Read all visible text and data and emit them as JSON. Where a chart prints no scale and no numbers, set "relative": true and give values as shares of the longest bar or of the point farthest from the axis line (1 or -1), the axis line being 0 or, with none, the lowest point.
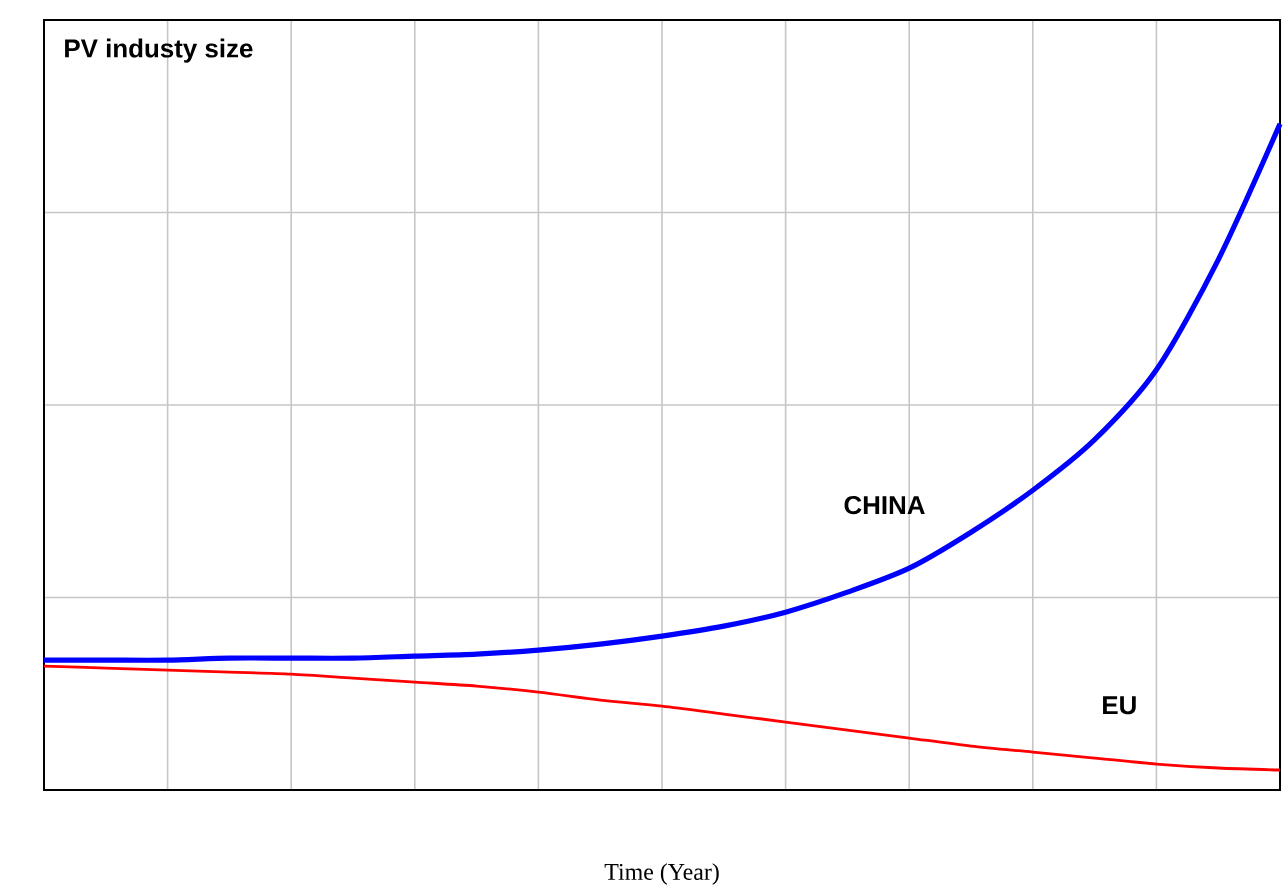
{
  "chart_data": {
    "type": "line",
    "title": "PV industy size",
    "xlabel": "Time (Year)",
    "relative": true,
    "grid": true,
    "tick_labels": false,
    "marker": "none",
    "line_style": "solid",
    "categories": [
      null,
      null,
      null,
      null,
      null,
      null,
      null,
      null,
      null,
      null,
      null,
      null,
      null,
      null,
      null,
      null,
      null,
      null,
      null,
      null,
      null
    ],
    "series": [
      {
        "name": "CHINA",
        "color": "#0000ff",
        "values": [
          0.195,
          0.195,
          0.195,
          0.198,
          0.198,
          0.198,
          0.201,
          0.204,
          0.21,
          0.219,
          0.231,
          0.246,
          0.267,
          0.297,
          0.333,
          0.387,
          0.45,
          0.526,
          0.631,
          0.796,
          1
        ]
      },
      {
        "name": "EU",
        "color": "#ff0000",
        "values": [
          0.186,
          0.183,
          0.18,
          0.177,
          0.174,
          0.168,
          0.162,
          0.156,
          0.147,
          0.135,
          0.126,
          0.114,
          0.102,
          0.09,
          0.078,
          0.066,
          0.057,
          0.048,
          0.039,
          0.033,
          0.03
        ]
      }
    ]
  }
}
